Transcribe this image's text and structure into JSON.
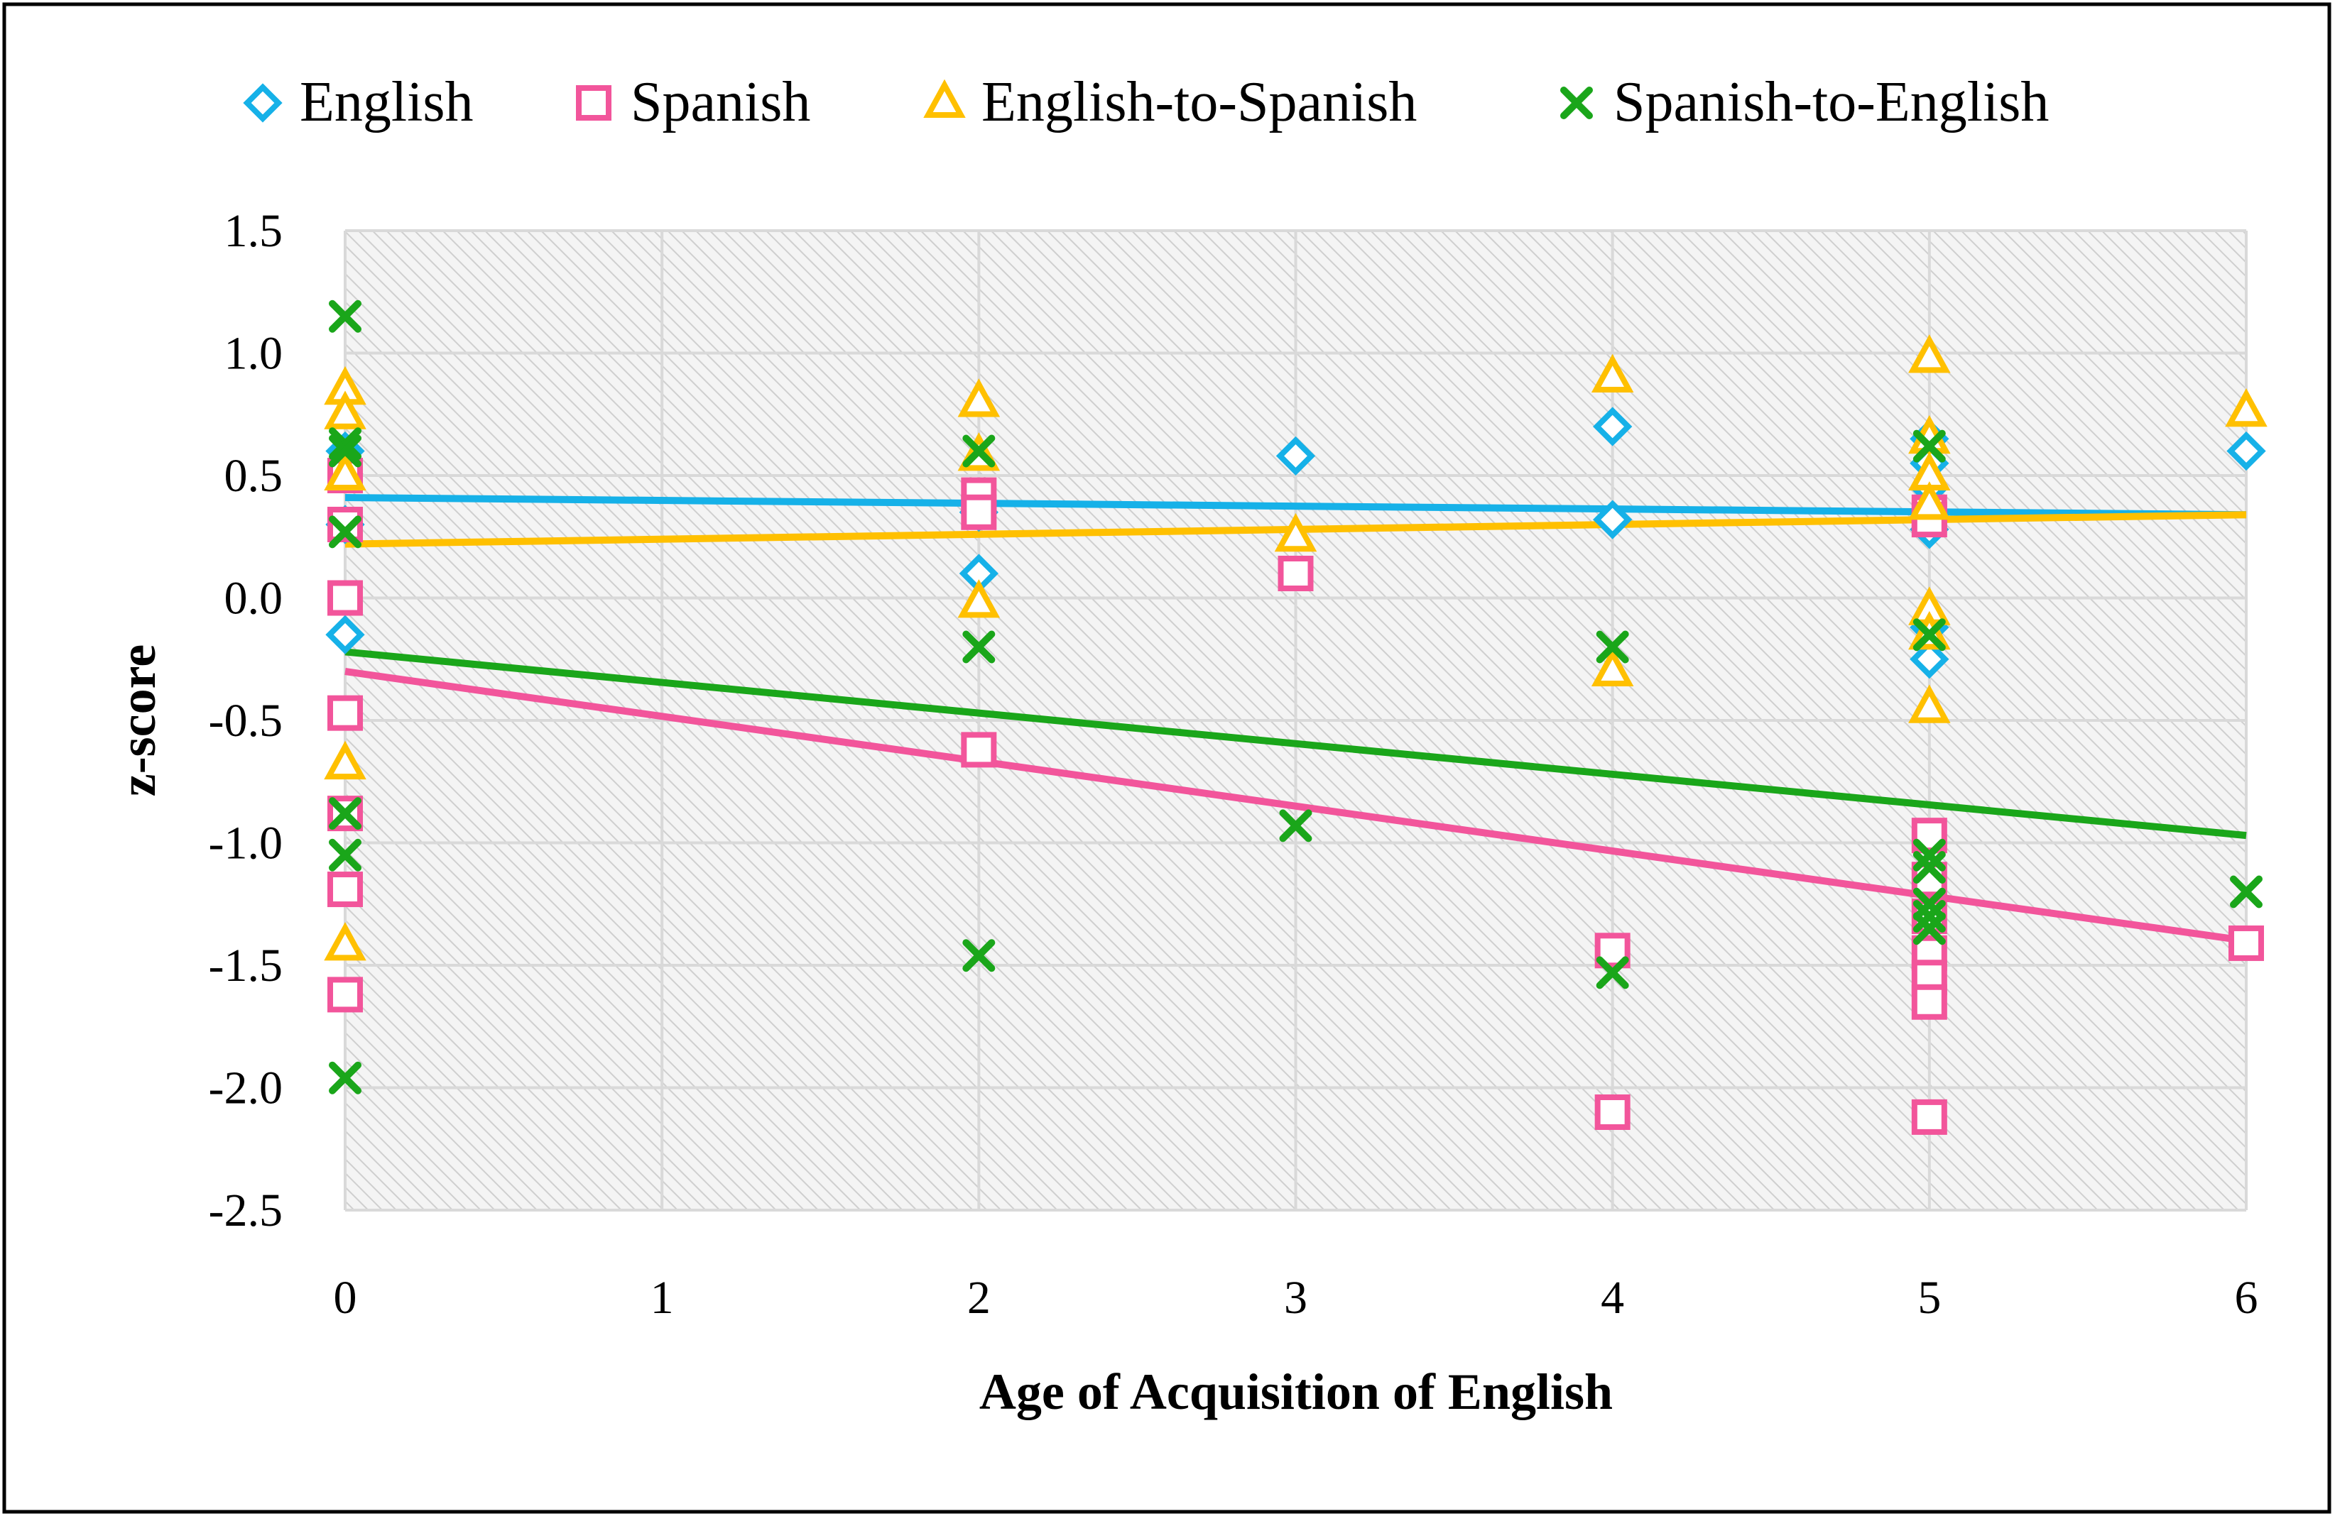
{
  "chart_data": {
    "type": "scatter",
    "title": "",
    "xlabel": "Age of Acquisition of English",
    "ylabel": "z-score",
    "xlim": [
      0,
      6
    ],
    "ylim": [
      -2.5,
      1.5
    ],
    "xticks": [
      0,
      1,
      2,
      3,
      4,
      5,
      6
    ],
    "yticks": [
      1.5,
      1.0,
      0.5,
      0.0,
      -0.5,
      -1.0,
      -1.5,
      -2.0,
      -2.5
    ],
    "ytick_labels": [
      "1.5",
      "1.0",
      "0.5",
      "0.0",
      "-0.5",
      "-1.0",
      "-1.5",
      "-2.0",
      "-2.5"
    ],
    "grid": true,
    "legend_position": "top",
    "series": [
      {
        "name": "English",
        "marker": "diamond",
        "color": "#16B1E8",
        "points": [
          [
            0,
            -0.15
          ],
          [
            0,
            0.6
          ],
          [
            0,
            0.3
          ],
          [
            2,
            0.1
          ],
          [
            2,
            0.35
          ],
          [
            3,
            0.58
          ],
          [
            4,
            0.7
          ],
          [
            4,
            0.32
          ],
          [
            5,
            0.65
          ],
          [
            5,
            0.55
          ],
          [
            5,
            0.45
          ],
          [
            5,
            0.28
          ],
          [
            5,
            -0.25
          ],
          [
            5,
            -0.12
          ],
          [
            6,
            0.6
          ]
        ],
        "trend": [
          0.41,
          0.34
        ]
      },
      {
        "name": "Spanish",
        "marker": "square",
        "color": "#F2559B",
        "points": [
          [
            0,
            0.5
          ],
          [
            0,
            0.3
          ],
          [
            0,
            0.0
          ],
          [
            0,
            -0.47
          ],
          [
            0,
            -0.88
          ],
          [
            0,
            -1.19
          ],
          [
            0,
            -1.62
          ],
          [
            2,
            0.42
          ],
          [
            2,
            0.35
          ],
          [
            2,
            -0.62
          ],
          [
            3,
            0.1
          ],
          [
            4,
            -1.44
          ],
          [
            4,
            -2.1
          ],
          [
            5,
            0.35
          ],
          [
            5,
            0.32
          ],
          [
            5,
            -0.97
          ],
          [
            5,
            -1.15
          ],
          [
            5,
            -1.3
          ],
          [
            5,
            -1.45
          ],
          [
            5,
            -1.55
          ],
          [
            5,
            -1.65
          ],
          [
            5,
            -2.12
          ],
          [
            6,
            -1.41
          ]
        ],
        "trend": [
          -0.3,
          -1.4
        ]
      },
      {
        "name": "English-to-Spanish",
        "marker": "triangle",
        "color": "#FFC000",
        "points": [
          [
            0,
            0.85
          ],
          [
            0,
            0.75
          ],
          [
            0,
            0.5
          ],
          [
            0,
            -0.68
          ],
          [
            0,
            -1.42
          ],
          [
            2,
            0.8
          ],
          [
            2,
            0.58
          ],
          [
            2,
            -0.02
          ],
          [
            3,
            0.25
          ],
          [
            4,
            0.9
          ],
          [
            4,
            -0.3
          ],
          [
            5,
            0.98
          ],
          [
            5,
            0.65
          ],
          [
            5,
            0.5
          ],
          [
            5,
            0.38
          ],
          [
            5,
            -0.05
          ],
          [
            5,
            -0.15
          ],
          [
            5,
            -0.45
          ],
          [
            6,
            0.76
          ]
        ],
        "trend": [
          0.22,
          0.34
        ]
      },
      {
        "name": "Spanish-to-English",
        "marker": "x",
        "color": "#1AA61A",
        "points": [
          [
            0,
            1.15
          ],
          [
            0,
            0.63
          ],
          [
            0,
            0.6
          ],
          [
            0,
            0.27
          ],
          [
            0,
            -0.88
          ],
          [
            0,
            -1.05
          ],
          [
            0,
            -1.96
          ],
          [
            2,
            0.6
          ],
          [
            2,
            -0.2
          ],
          [
            2,
            -1.46
          ],
          [
            3,
            -0.93
          ],
          [
            4,
            -0.2
          ],
          [
            4,
            -1.53
          ],
          [
            5,
            0.62
          ],
          [
            5,
            -0.15
          ],
          [
            5,
            -1.05
          ],
          [
            5,
            -1.1
          ],
          [
            5,
            -1.25
          ],
          [
            5,
            -1.3
          ],
          [
            5,
            -1.35
          ],
          [
            6,
            -1.2
          ]
        ],
        "trend": [
          -0.22,
          -0.97
        ]
      }
    ]
  }
}
